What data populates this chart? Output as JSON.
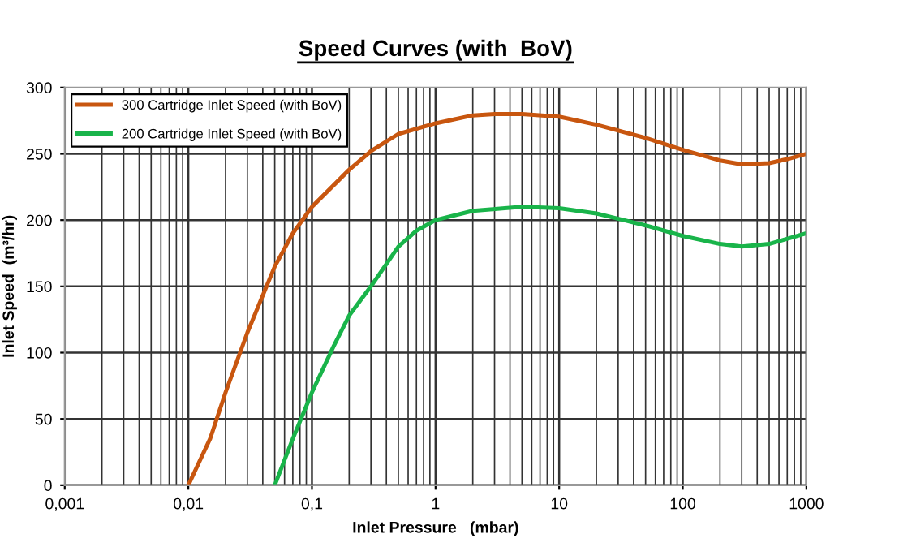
{
  "chart_data": {
    "type": "line",
    "title": "Speed Curves (with  BoV)",
    "xlabel": "Inlet Pressure   (mbar)",
    "ylabel": "Inlet Speed  (m³/hr)",
    "log": "x",
    "xlim": [
      0.001,
      1000
    ],
    "xticks": [
      {
        "value": 0.001,
        "label": "0,001"
      },
      {
        "value": 0.01,
        "label": "0,01"
      },
      {
        "value": 0.1,
        "label": "0,1"
      },
      1,
      10,
      100,
      1000
    ],
    "ylim": [
      0,
      300
    ],
    "yticks": [
      0,
      50,
      100,
      150,
      200,
      250,
      300
    ],
    "grid": true,
    "legend": "top left",
    "marker": "none",
    "line_style": "solid",
    "series": [
      {
        "name": "300 Cartridge Inlet Speed (with BoV)",
        "color": "#c8560f",
        "x": [
          0.01,
          0.015,
          0.02,
          0.03,
          0.05,
          0.07,
          0.1,
          0.2,
          0.3,
          0.5,
          1,
          2,
          3,
          5,
          10,
          20,
          50,
          100,
          200,
          300,
          500,
          700,
          1000
        ],
        "values": [
          0,
          35,
          70,
          115,
          165,
          190,
          210,
          238,
          252,
          265,
          273,
          279,
          280,
          280,
          278,
          272,
          262,
          253,
          245,
          242,
          243,
          246,
          250
        ]
      },
      {
        "name": "200 Cartridge Inlet Speed (with BoV)",
        "color": "#19b44a",
        "x": [
          0.05,
          0.07,
          0.1,
          0.15,
          0.2,
          0.3,
          0.5,
          0.7,
          1,
          2,
          5,
          10,
          20,
          50,
          100,
          200,
          300,
          500,
          1000
        ],
        "values": [
          0,
          35,
          70,
          105,
          128,
          150,
          180,
          192,
          200,
          207,
          210,
          209,
          205,
          196,
          188,
          182,
          180,
          182,
          190
        ]
      }
    ]
  }
}
